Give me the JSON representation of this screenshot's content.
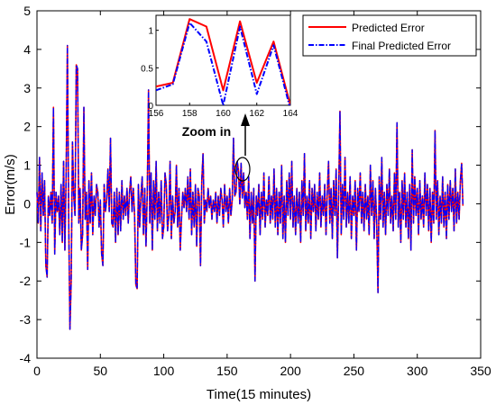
{
  "chart_data": {
    "type": "line",
    "xlabel": "Time(15 minutes)",
    "ylabel": "Error(m/s)",
    "xlim": [
      0,
      350
    ],
    "ylim": [
      -4,
      5
    ],
    "xticks": [
      0,
      50,
      100,
      150,
      200,
      250,
      300,
      350
    ],
    "yticks": [
      -4,
      -3,
      -2,
      -1,
      0,
      1,
      2,
      3,
      4,
      5
    ],
    "grid": false,
    "legend_position": "top-right",
    "colors": {
      "predicted": "#ff0000",
      "final": "#0000ff"
    },
    "series": [
      {
        "name": "Predicted Error",
        "style": "solid"
      },
      {
        "name": "Final Predicted Error",
        "style": "dashdot"
      }
    ],
    "main_series_points": [
      [
        0,
        0.3
      ],
      [
        1,
        -0.5
      ],
      [
        2,
        1.2
      ],
      [
        3,
        -0.7
      ],
      [
        4,
        0.8
      ],
      [
        5,
        -0.3
      ],
      [
        6,
        0.6
      ],
      [
        7,
        -1.6
      ],
      [
        8,
        -1.9
      ],
      [
        9,
        0.2
      ],
      [
        10,
        -0.3
      ],
      [
        11,
        0.3
      ],
      [
        12,
        -0.5
      ],
      [
        13,
        2.5
      ],
      [
        14,
        -1.3
      ],
      [
        15,
        0.3
      ],
      [
        16,
        -0.2
      ],
      [
        17,
        0.2
      ],
      [
        18,
        -0.8
      ],
      [
        19,
        0.5
      ],
      [
        20,
        -1.0
      ],
      [
        21,
        1.1
      ],
      [
        22,
        -1.2
      ],
      [
        23,
        0.7
      ],
      [
        24,
        4.1
      ],
      [
        25,
        -0.3
      ],
      [
        26,
        -3.25
      ],
      [
        27,
        -2.0
      ],
      [
        28,
        1.6
      ],
      [
        29,
        0.2
      ],
      [
        30,
        -0.3
      ],
      [
        31,
        3.6
      ],
      [
        32,
        3.5
      ],
      [
        33,
        -0.5
      ],
      [
        34,
        0.4
      ],
      [
        35,
        -1.2
      ],
      [
        36,
        -0.8
      ],
      [
        37,
        2.5
      ],
      [
        38,
        -0.4
      ],
      [
        39,
        0.3
      ],
      [
        40,
        -1.7
      ],
      [
        41,
        0.6
      ],
      [
        42,
        -0.5
      ],
      [
        43,
        0.8
      ],
      [
        44,
        -0.8
      ],
      [
        45,
        0.2
      ],
      [
        46,
        -0.3
      ],
      [
        47,
        0.5
      ],
      [
        48,
        0.3
      ],
      [
        49,
        -0.6
      ],
      [
        50,
        0.1
      ],
      [
        51,
        -1.3
      ],
      [
        52,
        -1.6
      ],
      [
        53,
        0.5
      ],
      [
        54,
        -0.2
      ],
      [
        55,
        0.1
      ],
      [
        56,
        0.9
      ],
      [
        57,
        -0.2
      ],
      [
        58,
        1.7
      ],
      [
        59,
        -0.5
      ],
      [
        60,
        -0.6
      ],
      [
        61,
        0.3
      ],
      [
        62,
        -1.0
      ],
      [
        63,
        0.4
      ],
      [
        64,
        -0.8
      ],
      [
        65,
        0.3
      ],
      [
        66,
        -0.7
      ],
      [
        67,
        0.6
      ],
      [
        68,
        -0.4
      ],
      [
        69,
        0.2
      ],
      [
        70,
        -0.3
      ],
      [
        71,
        0.4
      ],
      [
        72,
        -0.5
      ],
      [
        73,
        0.3
      ],
      [
        74,
        0.7
      ],
      [
        75,
        -0.2
      ],
      [
        76,
        0.4
      ],
      [
        77,
        -0.3
      ],
      [
        78,
        -2.1
      ],
      [
        79,
        -2.2
      ],
      [
        80,
        0.5
      ],
      [
        81,
        -0.6
      ],
      [
        82,
        0.2
      ],
      [
        83,
        0.7
      ],
      [
        84,
        -0.8
      ],
      [
        85,
        0.4
      ],
      [
        86,
        -1.1
      ],
      [
        87,
        0.3
      ],
      [
        88,
        2.95
      ],
      [
        89,
        -0.5
      ],
      [
        90,
        0.8
      ],
      [
        91,
        -1.2
      ],
      [
        92,
        0.6
      ],
      [
        93,
        -0.4
      ],
      [
        94,
        1.1
      ],
      [
        95,
        -0.7
      ],
      [
        96,
        0.3
      ],
      [
        97,
        -0.5
      ],
      [
        98,
        0.6
      ],
      [
        99,
        -0.9
      ],
      [
        100,
        -0.6
      ],
      [
        101,
        0.8
      ],
      [
        102,
        0.5
      ],
      [
        103,
        -0.7
      ],
      [
        104,
        -0.3
      ],
      [
        105,
        1.1
      ],
      [
        106,
        -0.9
      ],
      [
        107,
        0.2
      ],
      [
        108,
        -0.5
      ],
      [
        109,
        -0.2
      ],
      [
        110,
        1.0
      ],
      [
        111,
        -0.6
      ],
      [
        112,
        0.4
      ],
      [
        113,
        -1.2
      ],
      [
        114,
        -0.4
      ],
      [
        115,
        0.3
      ],
      [
        116,
        -0.1
      ],
      [
        117,
        0.4
      ],
      [
        118,
        -0.2
      ],
      [
        119,
        0.7
      ],
      [
        120,
        -0.4
      ],
      [
        121,
        0.9
      ],
      [
        122,
        -0.8
      ],
      [
        123,
        0.3
      ],
      [
        124,
        -0.6
      ],
      [
        125,
        0.5
      ],
      [
        126,
        -1.1
      ],
      [
        127,
        0.4
      ],
      [
        128,
        0.2
      ],
      [
        129,
        -1.6
      ],
      [
        130,
        0.6
      ],
      [
        131,
        1.3
      ],
      [
        132,
        -0.5
      ],
      [
        133,
        0.1
      ],
      [
        134,
        -0.2
      ],
      [
        135,
        0.4
      ],
      [
        136,
        -0.1
      ],
      [
        137,
        0.2
      ],
      [
        138,
        -0.4
      ],
      [
        139,
        0.1
      ],
      [
        140,
        -0.2
      ],
      [
        141,
        0.3
      ],
      [
        142,
        -0.5
      ],
      [
        143,
        0.2
      ],
      [
        144,
        -0.3
      ],
      [
        145,
        0.4
      ],
      [
        146,
        0.1
      ],
      [
        147,
        -0.6
      ],
      [
        148,
        0.5
      ],
      [
        149,
        -0.2
      ],
      [
        150,
        0.2
      ],
      [
        151,
        -0.5
      ],
      [
        152,
        0.4
      ],
      [
        153,
        -0.3
      ],
      [
        154,
        0.1
      ],
      [
        155,
        1.7
      ],
      [
        156,
        0.2
      ],
      [
        157,
        0.3
      ],
      [
        158,
        1.1
      ],
      [
        159,
        0.85
      ],
      [
        160,
        0.0
      ],
      [
        161,
        1.05
      ],
      [
        162,
        0.15
      ],
      [
        163,
        0.8
      ],
      [
        164,
        -0.1
      ],
      [
        165,
        0.3
      ],
      [
        166,
        -0.4
      ],
      [
        167,
        0.7
      ],
      [
        168,
        -0.9
      ],
      [
        169,
        0.3
      ],
      [
        170,
        -0.5
      ],
      [
        171,
        0.4
      ],
      [
        172,
        -2.0
      ],
      [
        173,
        0.2
      ],
      [
        174,
        -0.3
      ],
      [
        175,
        0.5
      ],
      [
        176,
        -0.8
      ],
      [
        177,
        0.3
      ],
      [
        178,
        -0.4
      ],
      [
        179,
        0.8
      ],
      [
        180,
        -0.6
      ],
      [
        181,
        0.1
      ],
      [
        182,
        -0.3
      ],
      [
        183,
        0.7
      ],
      [
        184,
        -0.5
      ],
      [
        185,
        0.2
      ],
      [
        186,
        -0.4
      ],
      [
        187,
        0.9
      ],
      [
        188,
        -0.6
      ],
      [
        189,
        0.4
      ],
      [
        190,
        -0.8
      ],
      [
        191,
        0.3
      ],
      [
        192,
        -0.5
      ],
      [
        193,
        1.0
      ],
      [
        194,
        -0.9
      ],
      [
        195,
        0.2
      ],
      [
        196,
        -1.0
      ],
      [
        197,
        0.6
      ],
      [
        198,
        -0.3
      ],
      [
        199,
        0.8
      ],
      [
        200,
        -0.4
      ],
      [
        201,
        1.1
      ],
      [
        202,
        -0.6
      ],
      [
        203,
        0.2
      ],
      [
        204,
        -0.8
      ],
      [
        205,
        0.4
      ],
      [
        206,
        -0.5
      ],
      [
        207,
        0.3
      ],
      [
        208,
        -1.0
      ],
      [
        209,
        0.6
      ],
      [
        210,
        -0.3
      ],
      [
        211,
        1.3
      ],
      [
        212,
        -0.7
      ],
      [
        213,
        0.2
      ],
      [
        214,
        -0.5
      ],
      [
        215,
        0.6
      ],
      [
        216,
        -0.9
      ],
      [
        217,
        0.4
      ],
      [
        218,
        -0.2
      ],
      [
        219,
        0.5
      ],
      [
        220,
        -0.7
      ],
      [
        221,
        0.3
      ],
      [
        222,
        -0.4
      ],
      [
        223,
        0.8
      ],
      [
        224,
        -0.6
      ],
      [
        225,
        0.2
      ],
      [
        226,
        -0.3
      ],
      [
        227,
        0.5
      ],
      [
        228,
        -0.8
      ],
      [
        229,
        0.3
      ],
      [
        230,
        1.1
      ],
      [
        231,
        -0.5
      ],
      [
        232,
        0.4
      ],
      [
        233,
        -0.9
      ],
      [
        234,
        0.6
      ],
      [
        235,
        -0.3
      ],
      [
        236,
        0.9
      ],
      [
        237,
        -1.4
      ],
      [
        238,
        0.3
      ],
      [
        239,
        2.4
      ],
      [
        240,
        -0.8
      ],
      [
        241,
        0.5
      ],
      [
        242,
        -0.4
      ],
      [
        243,
        1.2
      ],
      [
        244,
        -0.6
      ],
      [
        245,
        0.3
      ],
      [
        246,
        -0.5
      ],
      [
        247,
        0.7
      ],
      [
        248,
        -0.9
      ],
      [
        249,
        0.2
      ],
      [
        250,
        -0.3
      ],
      [
        251,
        0.6
      ],
      [
        252,
        -1.2
      ],
      [
        253,
        0.4
      ],
      [
        254,
        -0.2
      ],
      [
        255,
        0.8
      ],
      [
        256,
        -0.5
      ],
      [
        257,
        0.3
      ],
      [
        258,
        -0.7
      ],
      [
        259,
        0.5
      ],
      [
        260,
        -0.4
      ],
      [
        261,
        0.2
      ],
      [
        262,
        -0.8
      ],
      [
        263,
        1.0
      ],
      [
        264,
        -0.3
      ],
      [
        265,
        0.6
      ],
      [
        266,
        -0.9
      ],
      [
        267,
        0.4
      ],
      [
        268,
        -0.5
      ],
      [
        269,
        -2.3
      ],
      [
        270,
        0.7
      ],
      [
        271,
        -0.4
      ],
      [
        272,
        1.2
      ],
      [
        273,
        -0.6
      ],
      [
        274,
        0.3
      ],
      [
        275,
        -0.8
      ],
      [
        276,
        0.5
      ],
      [
        277,
        -0.3
      ],
      [
        278,
        0.9
      ],
      [
        279,
        -0.5
      ],
      [
        280,
        0.2
      ],
      [
        281,
        -0.7
      ],
      [
        282,
        0.8
      ],
      [
        283,
        -0.4
      ],
      [
        284,
        2.1
      ],
      [
        285,
        -0.6
      ],
      [
        286,
        0.3
      ],
      [
        287,
        -1.0
      ],
      [
        288,
        0.6
      ],
      [
        289,
        -0.4
      ],
      [
        290,
        0.8
      ],
      [
        291,
        -0.6
      ],
      [
        292,
        0.3
      ],
      [
        293,
        -0.9
      ],
      [
        294,
        0.5
      ],
      [
        295,
        -1.2
      ],
      [
        296,
        1.4
      ],
      [
        297,
        -0.5
      ],
      [
        298,
        0.7
      ],
      [
        299,
        -0.3
      ],
      [
        300,
        0.4
      ],
      [
        301,
        -0.8
      ],
      [
        302,
        0.6
      ],
      [
        303,
        -0.4
      ],
      [
        304,
        0.2
      ],
      [
        305,
        -0.6
      ],
      [
        306,
        0.8
      ],
      [
        307,
        -0.3
      ],
      [
        308,
        0.5
      ],
      [
        309,
        -0.7
      ],
      [
        310,
        0.4
      ],
      [
        311,
        -1.0
      ],
      [
        312,
        0.3
      ],
      [
        313,
        -0.5
      ],
      [
        314,
        1.9
      ],
      [
        315,
        -0.4
      ],
      [
        316,
        0.6
      ],
      [
        317,
        -0.8
      ],
      [
        318,
        0.2
      ],
      [
        319,
        -0.5
      ],
      [
        320,
        0.7
      ],
      [
        321,
        -0.6
      ],
      [
        322,
        0.3
      ],
      [
        323,
        -0.9
      ],
      [
        324,
        0.5
      ],
      [
        325,
        -0.4
      ],
      [
        326,
        0.6
      ],
      [
        327,
        -0.2
      ],
      [
        328,
        0.4
      ],
      [
        329,
        -0.7
      ],
      [
        330,
        0.9
      ],
      [
        331,
        -0.5
      ],
      [
        332,
        0.3
      ],
      [
        333,
        -0.4
      ],
      [
        334,
        0.6
      ],
      [
        335,
        1.05
      ],
      [
        336,
        -0.05
      ]
    ],
    "inset": {
      "xlim": [
        156,
        164
      ],
      "ylim": [
        0,
        1.2
      ],
      "xticks": [
        156,
        158,
        160,
        162,
        164
      ],
      "yticks": [
        0,
        0.5,
        1
      ],
      "series": [
        {
          "name": "Predicted Error",
          "x": [
            156,
            157,
            158,
            159,
            160,
            161,
            162,
            163,
            164
          ],
          "y": [
            0.25,
            0.3,
            1.15,
            1.05,
            0.2,
            1.12,
            0.3,
            0.85,
            0.0
          ]
        },
        {
          "name": "Final Predicted Error",
          "x": [
            156,
            157,
            158,
            159,
            160,
            161,
            162,
            163,
            164
          ],
          "y": [
            0.2,
            0.28,
            1.1,
            0.85,
            0.0,
            1.05,
            0.15,
            0.8,
            -0.05
          ]
        }
      ]
    },
    "annotation": "Zoom in"
  }
}
